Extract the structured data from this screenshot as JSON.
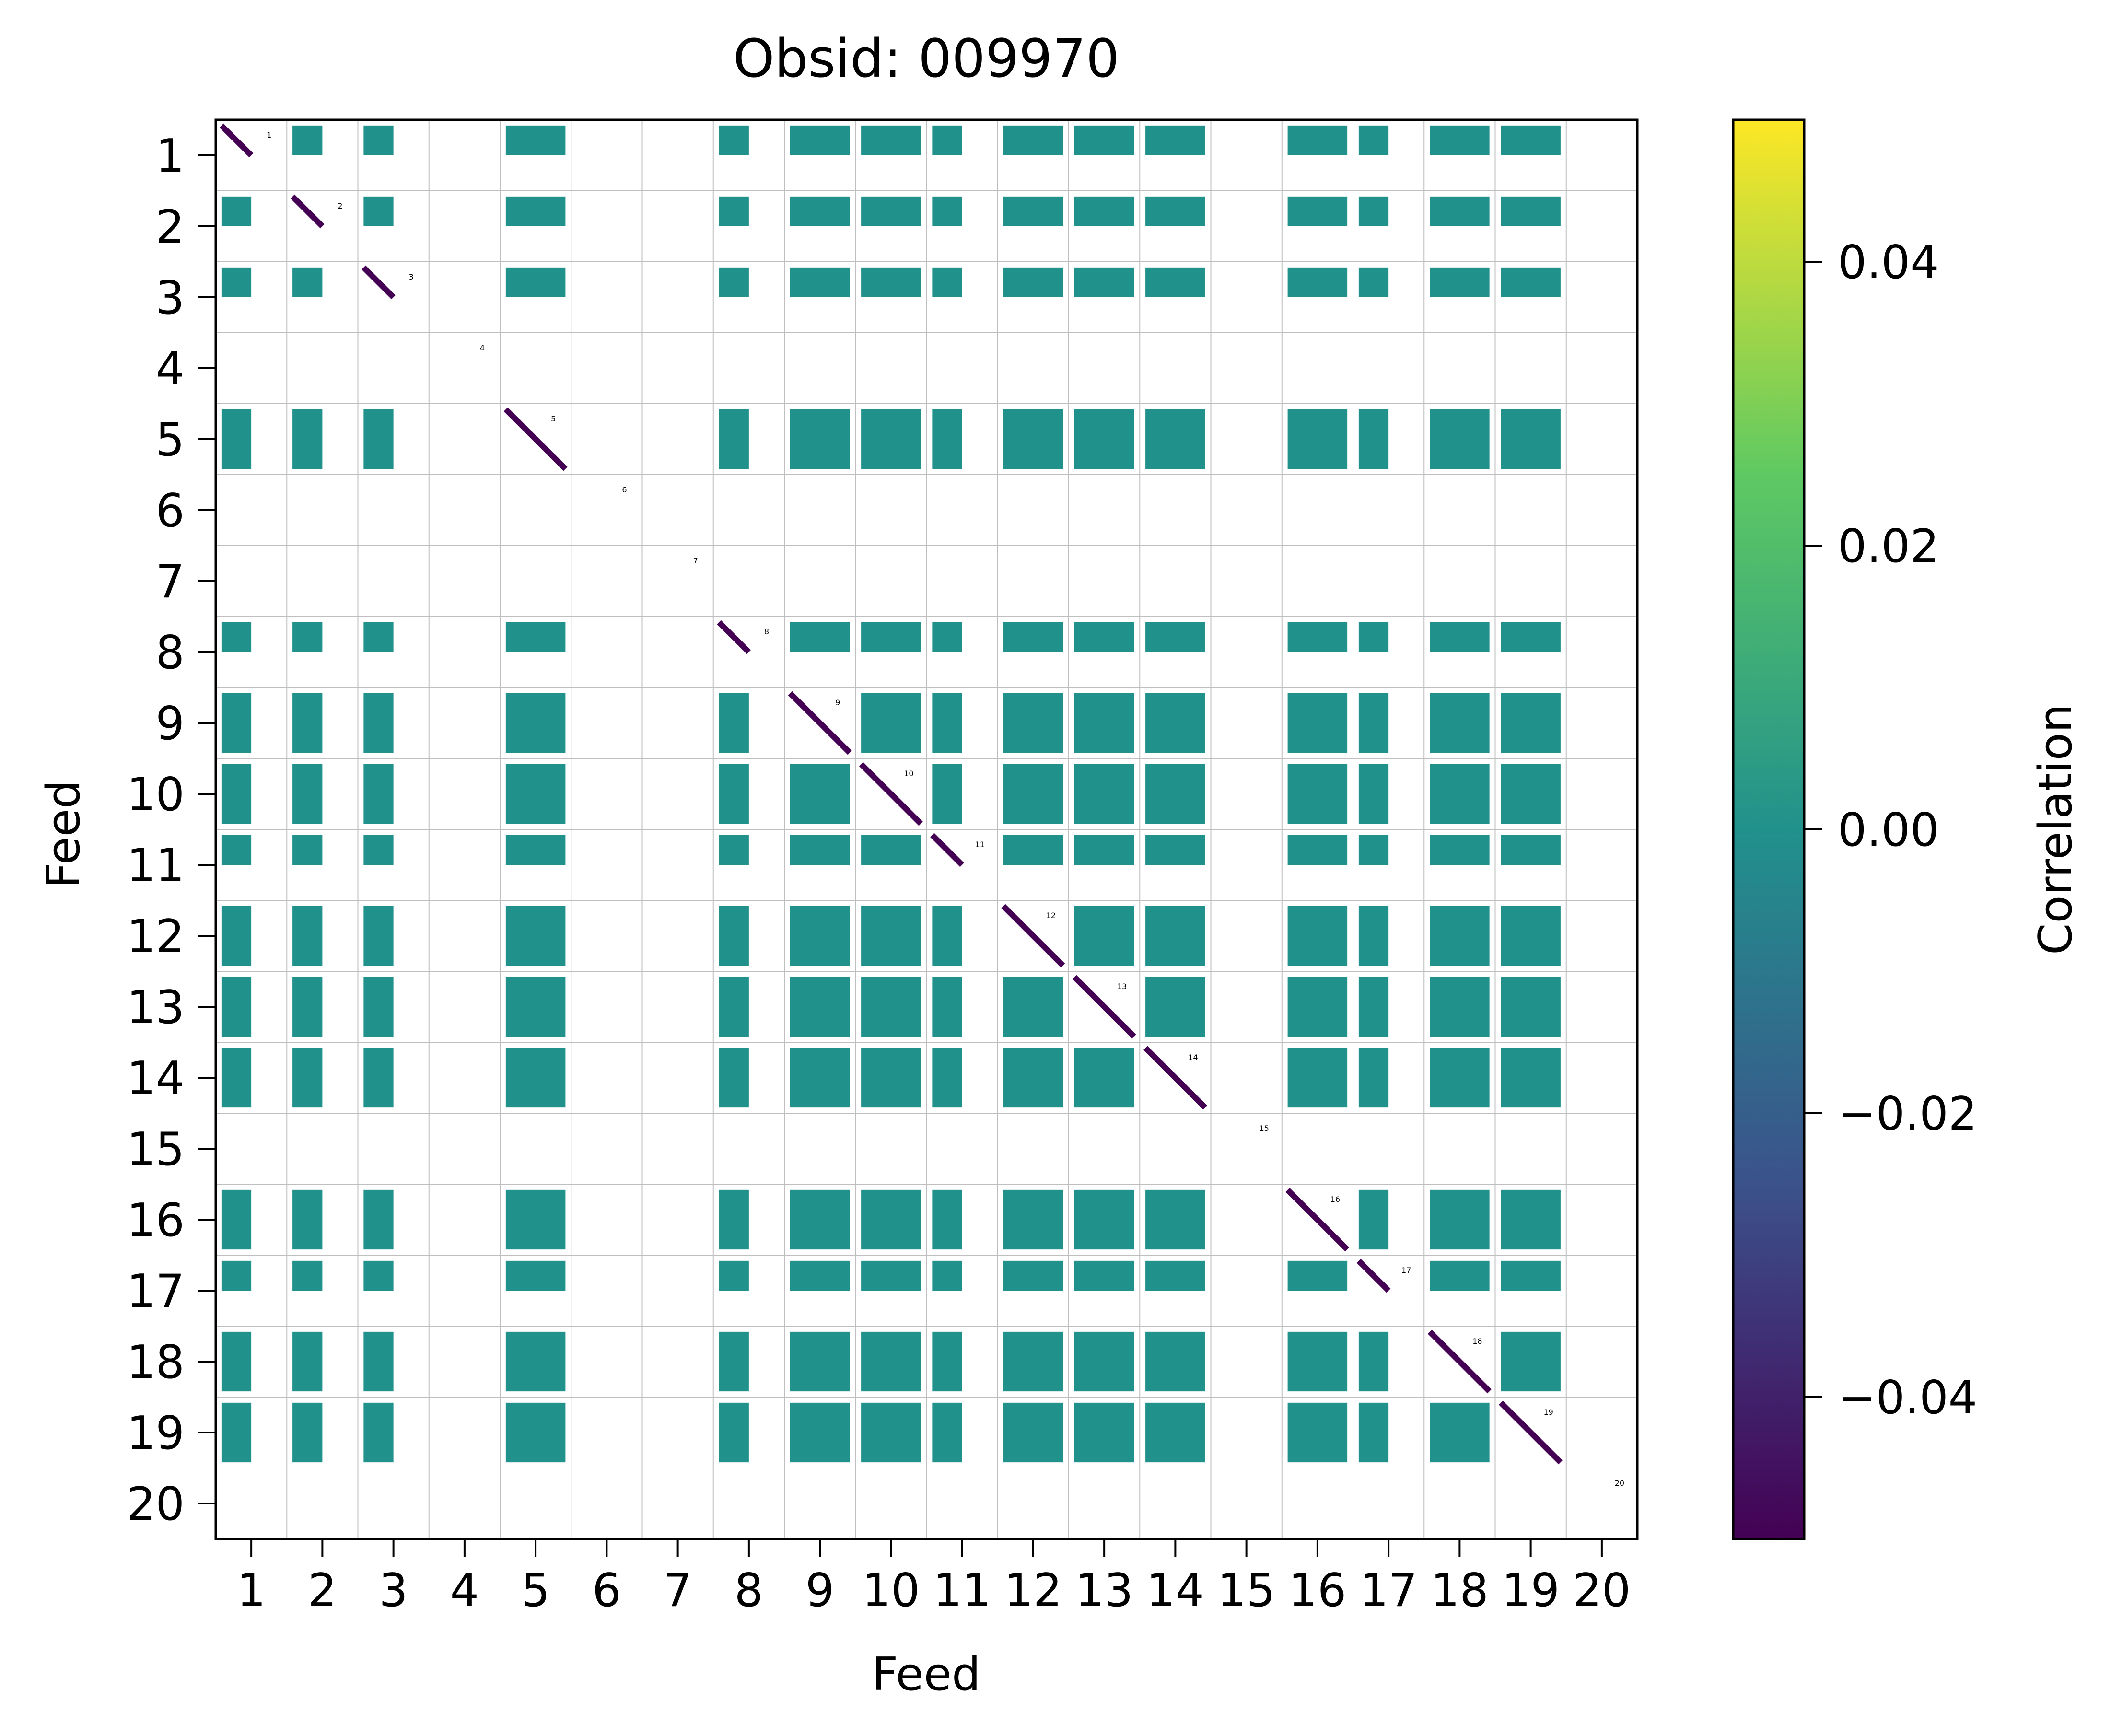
{
  "chart_data": {
    "type": "heatmap",
    "title": "Obsid: 009970",
    "xlabel": "Feed",
    "ylabel": "Feed",
    "x_tick_labels": [
      "1",
      "2",
      "3",
      "4",
      "5",
      "6",
      "7",
      "8",
      "9",
      "10",
      "11",
      "12",
      "13",
      "14",
      "15",
      "16",
      "17",
      "18",
      "19",
      "20"
    ],
    "y_tick_labels": [
      "1",
      "2",
      "3",
      "4",
      "5",
      "6",
      "7",
      "8",
      "9",
      "10",
      "11",
      "12",
      "13",
      "14",
      "15",
      "16",
      "17",
      "18",
      "19",
      "20"
    ],
    "diagonal_labels": [
      "1",
      "2",
      "3",
      "4",
      "5",
      "6",
      "7",
      "8",
      "9",
      "10",
      "11",
      "12",
      "13",
      "14",
      "15",
      "16",
      "17",
      "18",
      "19",
      "20"
    ],
    "colorbar": {
      "label": "Correlation",
      "range": [
        -0.05,
        0.05
      ],
      "ticks": [
        -0.04,
        -0.02,
        0.0,
        0.02,
        0.04
      ],
      "tick_labels": [
        "−0.04",
        "−0.02",
        "0.00",
        "0.02",
        "0.04"
      ],
      "colormap": "viridis",
      "stops": [
        "#440154",
        "#3b528b",
        "#21918c",
        "#5ec962",
        "#fde725"
      ]
    },
    "feeds_without_data": [
      4,
      6,
      7,
      15,
      20
    ],
    "off_diagonal_value": 0.0,
    "off_diagonal_color": "#21918c",
    "diagonal_value": -0.05,
    "diagonal_color": "#440154",
    "missing_color": "#ffffff",
    "sample_fraction": {
      "1": 0.5,
      "2": 0.5,
      "3": 0.5,
      "5": 1.0,
      "8": 0.5,
      "9": 1.0,
      "10": 1.0,
      "11": 0.5,
      "12": 1.0,
      "13": 1.0,
      "14": 1.0,
      "16": 1.0,
      "17": 0.5,
      "18": 1.0,
      "19": 1.0
    }
  }
}
